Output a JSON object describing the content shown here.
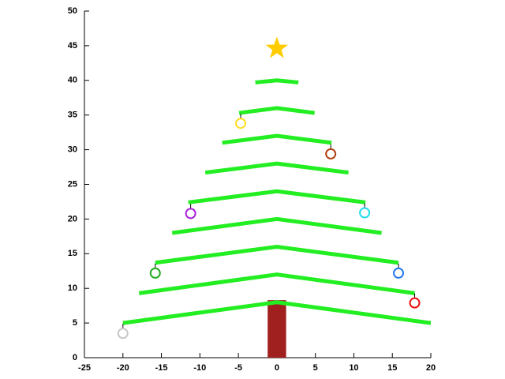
{
  "chart_data": {
    "type": "line",
    "xlim": [
      -25,
      20
    ],
    "xticks": [
      -25,
      -20,
      -15,
      -10,
      -5,
      0,
      5,
      10,
      15,
      20
    ],
    "ylim": [
      0,
      50
    ],
    "yticks": [
      0,
      5,
      10,
      15,
      20,
      25,
      30,
      35,
      40,
      45,
      50
    ],
    "grid": false,
    "series": [
      {
        "color": "#22ee22",
        "x": [
          -20,
          0,
          20,
          null,
          -17.9,
          0,
          17.9,
          null,
          -15.8,
          0,
          15.8,
          null,
          -13.6,
          0,
          13.6,
          null,
          -11.5,
          0,
          11.5,
          null,
          -9.3,
          0,
          9.3,
          null,
          -7.1,
          0,
          7.1,
          null,
          -4.9,
          0,
          4.9,
          null,
          -2.8,
          0,
          2.8
        ],
        "y": [
          5,
          8,
          5,
          null,
          9.3,
          12,
          9.3,
          null,
          13.7,
          16,
          13.7,
          null,
          18,
          20,
          18,
          null,
          22.4,
          24,
          22.4,
          null,
          26.7,
          28,
          26.7,
          null,
          31,
          32,
          31,
          null,
          35.3,
          36,
          35.3,
          null,
          39.7,
          40,
          39.7
        ]
      }
    ],
    "trunk": {
      "x": [
        -1.2,
        1.2
      ],
      "top": 8.3,
      "color": "#a02020"
    },
    "ornaments": {
      "x": [
        -20,
        -15.8,
        -11.2,
        -4.7,
        7,
        11.4,
        15.8,
        17.9
      ],
      "y": [
        3.5,
        12.2,
        20.8,
        33.8,
        29.4,
        20.9,
        12.2,
        7.9
      ],
      "colors": [
        "#c8c8c8",
        "#22aa22",
        "#aa22dd",
        "#ffdd22",
        "#b04010",
        "#22ddee",
        "#2277ee",
        "#ee1111"
      ]
    },
    "star": {
      "x": 0,
      "y": 44.6,
      "color": "#ffcc00"
    }
  }
}
